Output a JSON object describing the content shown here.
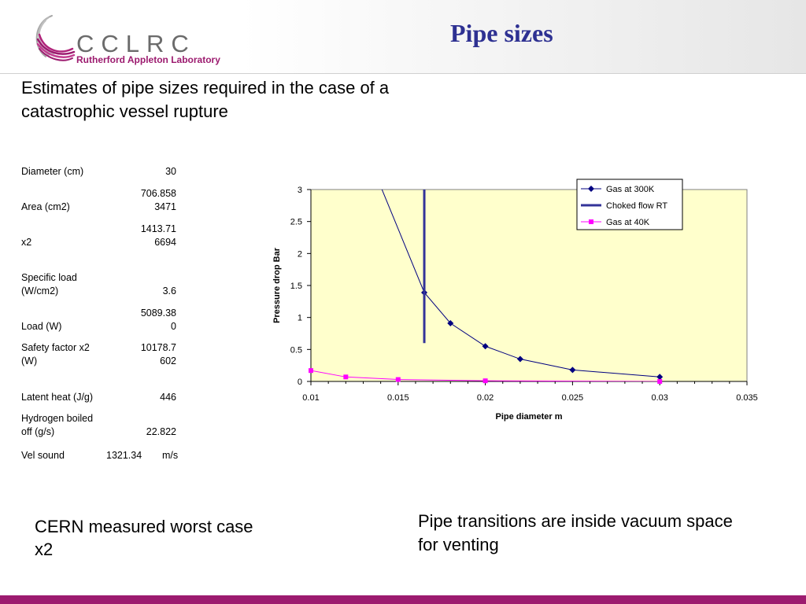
{
  "header": {
    "logo_text": "CCLRC",
    "logo_subtitle": "Rutherford Appleton Laboratory",
    "title": "Pipe sizes"
  },
  "intro": "Estimates of pipe sizes required in the case of a catastrophic vessel rupture",
  "table": [
    {
      "label": "Diameter (cm)",
      "value": "30"
    },
    {
      "label": "Area (cm2)",
      "value": "706.858\n3471"
    },
    {
      "label": "x2",
      "value": "1413.71\n6694"
    },
    {
      "label": "Specific load\n(W/cm2)",
      "value": "3.6"
    },
    {
      "label": "Load (W)",
      "value": "5089.38\n0"
    },
    {
      "label": "Safety factor x2\n(W)",
      "value": "10178.7\n602"
    },
    {
      "label": "Latent heat (J/g)",
      "value": "446"
    },
    {
      "label": "Hydrogen boiled\noff (g/s)",
      "value": "22.822"
    }
  ],
  "vel": {
    "label": "Vel sound",
    "value": "1321.34",
    "unit": "m/s"
  },
  "notes": {
    "left": "CERN measured worst case x2",
    "right": "Pipe transitions are inside vacuum space for venting"
  },
  "colors": {
    "title": "#2e3192",
    "accent": "#9c1b6f",
    "plot_bg": "#ffffcc",
    "series_300k": "#000080",
    "series_choked": "#333399",
    "series_40k": "#ff00ff"
  },
  "chart_data": {
    "type": "line",
    "title": "",
    "xlabel": "Pipe diameter m",
    "ylabel": "Pressure drop Bar",
    "xlim": [
      0.01,
      0.035
    ],
    "ylim": [
      0,
      3
    ],
    "xticks": [
      "0.01",
      "0.015",
      "0.02",
      "0.025",
      "0.03",
      "0.035"
    ],
    "yticks": [
      "0",
      "0.5",
      "1",
      "1.5",
      "2",
      "2.5",
      "3"
    ],
    "grid": false,
    "legend_position": "top-right",
    "series": [
      {
        "name": "Gas at 300K",
        "marker": "diamond",
        "x": [
          0.014,
          0.0165,
          0.018,
          0.02,
          0.022,
          0.025,
          0.03
        ],
        "y": [
          3.05,
          1.39,
          0.91,
          0.55,
          0.35,
          0.18,
          0.07
        ]
      },
      {
        "name": "Choked flow RT",
        "marker": "none",
        "x": [
          0.0165,
          0.0165
        ],
        "y": [
          0.6,
          3.0
        ]
      },
      {
        "name": "Gas at 40K",
        "marker": "square",
        "x": [
          0.01,
          0.012,
          0.015,
          0.02,
          0.03
        ],
        "y": [
          0.17,
          0.07,
          0.03,
          0.01,
          0.0
        ]
      }
    ]
  }
}
